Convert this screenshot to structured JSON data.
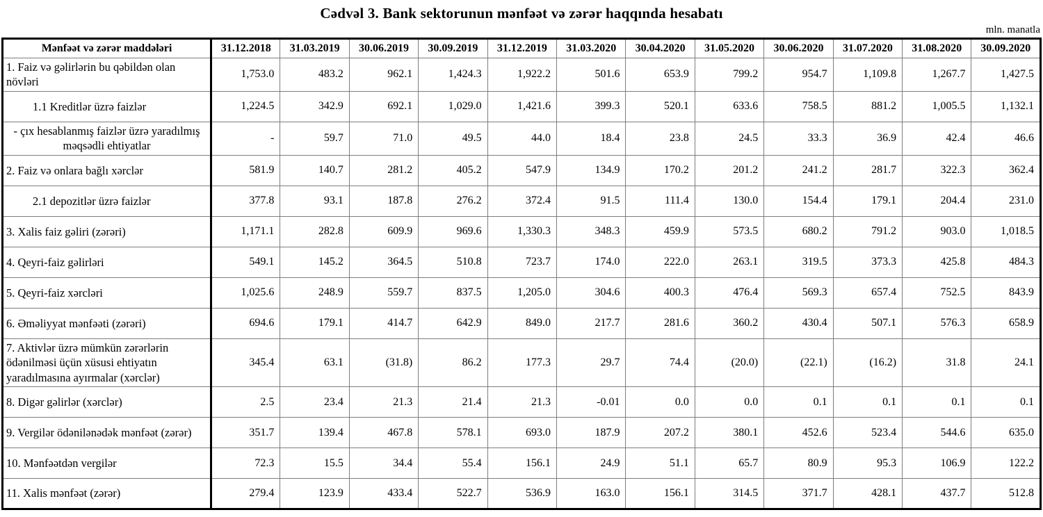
{
  "title": "Cədvəl 3. Bank sektorunun mənfəət və zərər haqqında hesabatı",
  "unit_note": "mln. manatla",
  "table": {
    "label_header": "Mənfəət və zərər maddələri",
    "columns": [
      "31.12.2018",
      "31.03.2019",
      "30.06.2019",
      "30.09.2019",
      "31.12.2019",
      "31.03.2020",
      "30.04.2020",
      "31.05.2020",
      "30.06.2020",
      "31.07.2020",
      "31.08.2020",
      "30.09.2020"
    ],
    "rows": [
      {
        "label": "1. Faiz və gəlirlərin bu qəbildən olan növləri",
        "align": "left",
        "values": [
          "1,753.0",
          "483.2",
          "962.1",
          "1,424.3",
          "1,922.2",
          "501.6",
          "653.9",
          "799.2",
          "954.7",
          "1,109.8",
          "1,267.7",
          "1,427.5"
        ]
      },
      {
        "label": "1.1 Kreditlər üzrə faizlər",
        "align": "indent",
        "values": [
          "1,224.5",
          "342.9",
          "692.1",
          "1,029.0",
          "1,421.6",
          "399.3",
          "520.1",
          "633.6",
          "758.5",
          "881.2",
          "1,005.5",
          "1,132.1"
        ]
      },
      {
        "label": "-  çıx hesablanmış faizlər üzrə yaradılmış məqsədli ehtiyatlar",
        "align": "center",
        "values": [
          "-",
          "59.7",
          "71.0",
          "49.5",
          "44.0",
          "18.4",
          "23.8",
          "24.5",
          "33.3",
          "36.9",
          "42.4",
          "46.6"
        ]
      },
      {
        "label": "2. Faiz və onlara bağlı xərclər",
        "align": "left",
        "values": [
          "581.9",
          "140.7",
          "281.2",
          "405.2",
          "547.9",
          "134.9",
          "170.2",
          "201.2",
          "241.2",
          "281.7",
          "322.3",
          "362.4"
        ]
      },
      {
        "label": "2.1 depozitlər üzrə faizlər",
        "align": "indent",
        "values": [
          "377.8",
          "93.1",
          "187.8",
          "276.2",
          "372.4",
          "91.5",
          "111.4",
          "130.0",
          "154.4",
          "179.1",
          "204.4",
          "231.0"
        ]
      },
      {
        "label": "3. Xalis faiz gəliri (zərəri)",
        "align": "left",
        "values": [
          "1,171.1",
          "282.8",
          "609.9",
          "969.6",
          "1,330.3",
          "348.3",
          "459.9",
          "573.5",
          "680.2",
          "791.2",
          "903.0",
          "1,018.5"
        ]
      },
      {
        "label": "4. Qeyri-faiz gəlirləri",
        "align": "left",
        "values": [
          "549.1",
          "145.2",
          "364.5",
          "510.8",
          "723.7",
          "174.0",
          "222.0",
          "263.1",
          "319.5",
          "373.3",
          "425.8",
          "484.3"
        ]
      },
      {
        "label": "5. Qeyri-faiz xərcləri",
        "align": "left",
        "values": [
          "1,025.6",
          "248.9",
          "559.7",
          "837.5",
          "1,205.0",
          "304.6",
          "400.3",
          "476.4",
          "569.3",
          "657.4",
          "752.5",
          "843.9"
        ]
      },
      {
        "label": "6. Əməliyyat mənfəəti (zərəri)",
        "align": "left",
        "values": [
          "694.6",
          "179.1",
          "414.7",
          "642.9",
          "849.0",
          "217.7",
          "281.6",
          "360.2",
          "430.4",
          "507.1",
          "576.3",
          "658.9"
        ]
      },
      {
        "label": "7. Aktivlər üzrə mümkün zərərlərin ödənilməsi üçün xüsusi ehtiyatın yaradılmasına ayırmalar (xərclər)",
        "align": "left",
        "values": [
          "345.4",
          "63.1",
          "(31.8)",
          "86.2",
          "177.3",
          "29.7",
          "74.4",
          "(20.0)",
          "(22.1)",
          "(16.2)",
          "31.8",
          "24.1"
        ]
      },
      {
        "label": "8. Digər gəlirlər (xərclər)",
        "align": "left",
        "values": [
          "2.5",
          "23.4",
          "21.3",
          "21.4",
          "21.3",
          "-0.01",
          "0.0",
          "0.0",
          "0.1",
          "0.1",
          "0.1",
          "0.1"
        ]
      },
      {
        "label": "9. Vergilər ödənilənədək mənfəət (zərər)",
        "align": "left",
        "values": [
          "351.7",
          "139.4",
          "467.8",
          "578.1",
          "693.0",
          "187.9",
          "207.2",
          "380.1",
          "452.6",
          "523.4",
          "544.6",
          "635.0"
        ]
      },
      {
        "label": "10. Mənfəətdən vergilər",
        "align": "left",
        "values": [
          "72.3",
          "15.5",
          "34.4",
          "55.4",
          "156.1",
          "24.9",
          "51.1",
          "65.7",
          "80.9",
          "95.3",
          "106.9",
          "122.2"
        ]
      },
      {
        "label": "11. Xalis mənfəət (zərər)",
        "align": "left",
        "values": [
          "279.4",
          "123.9",
          "433.4",
          "522.7",
          "536.9",
          "163.0",
          "156.1",
          "314.5",
          "371.7",
          "428.1",
          "437.7",
          "512.8"
        ]
      }
    ]
  }
}
